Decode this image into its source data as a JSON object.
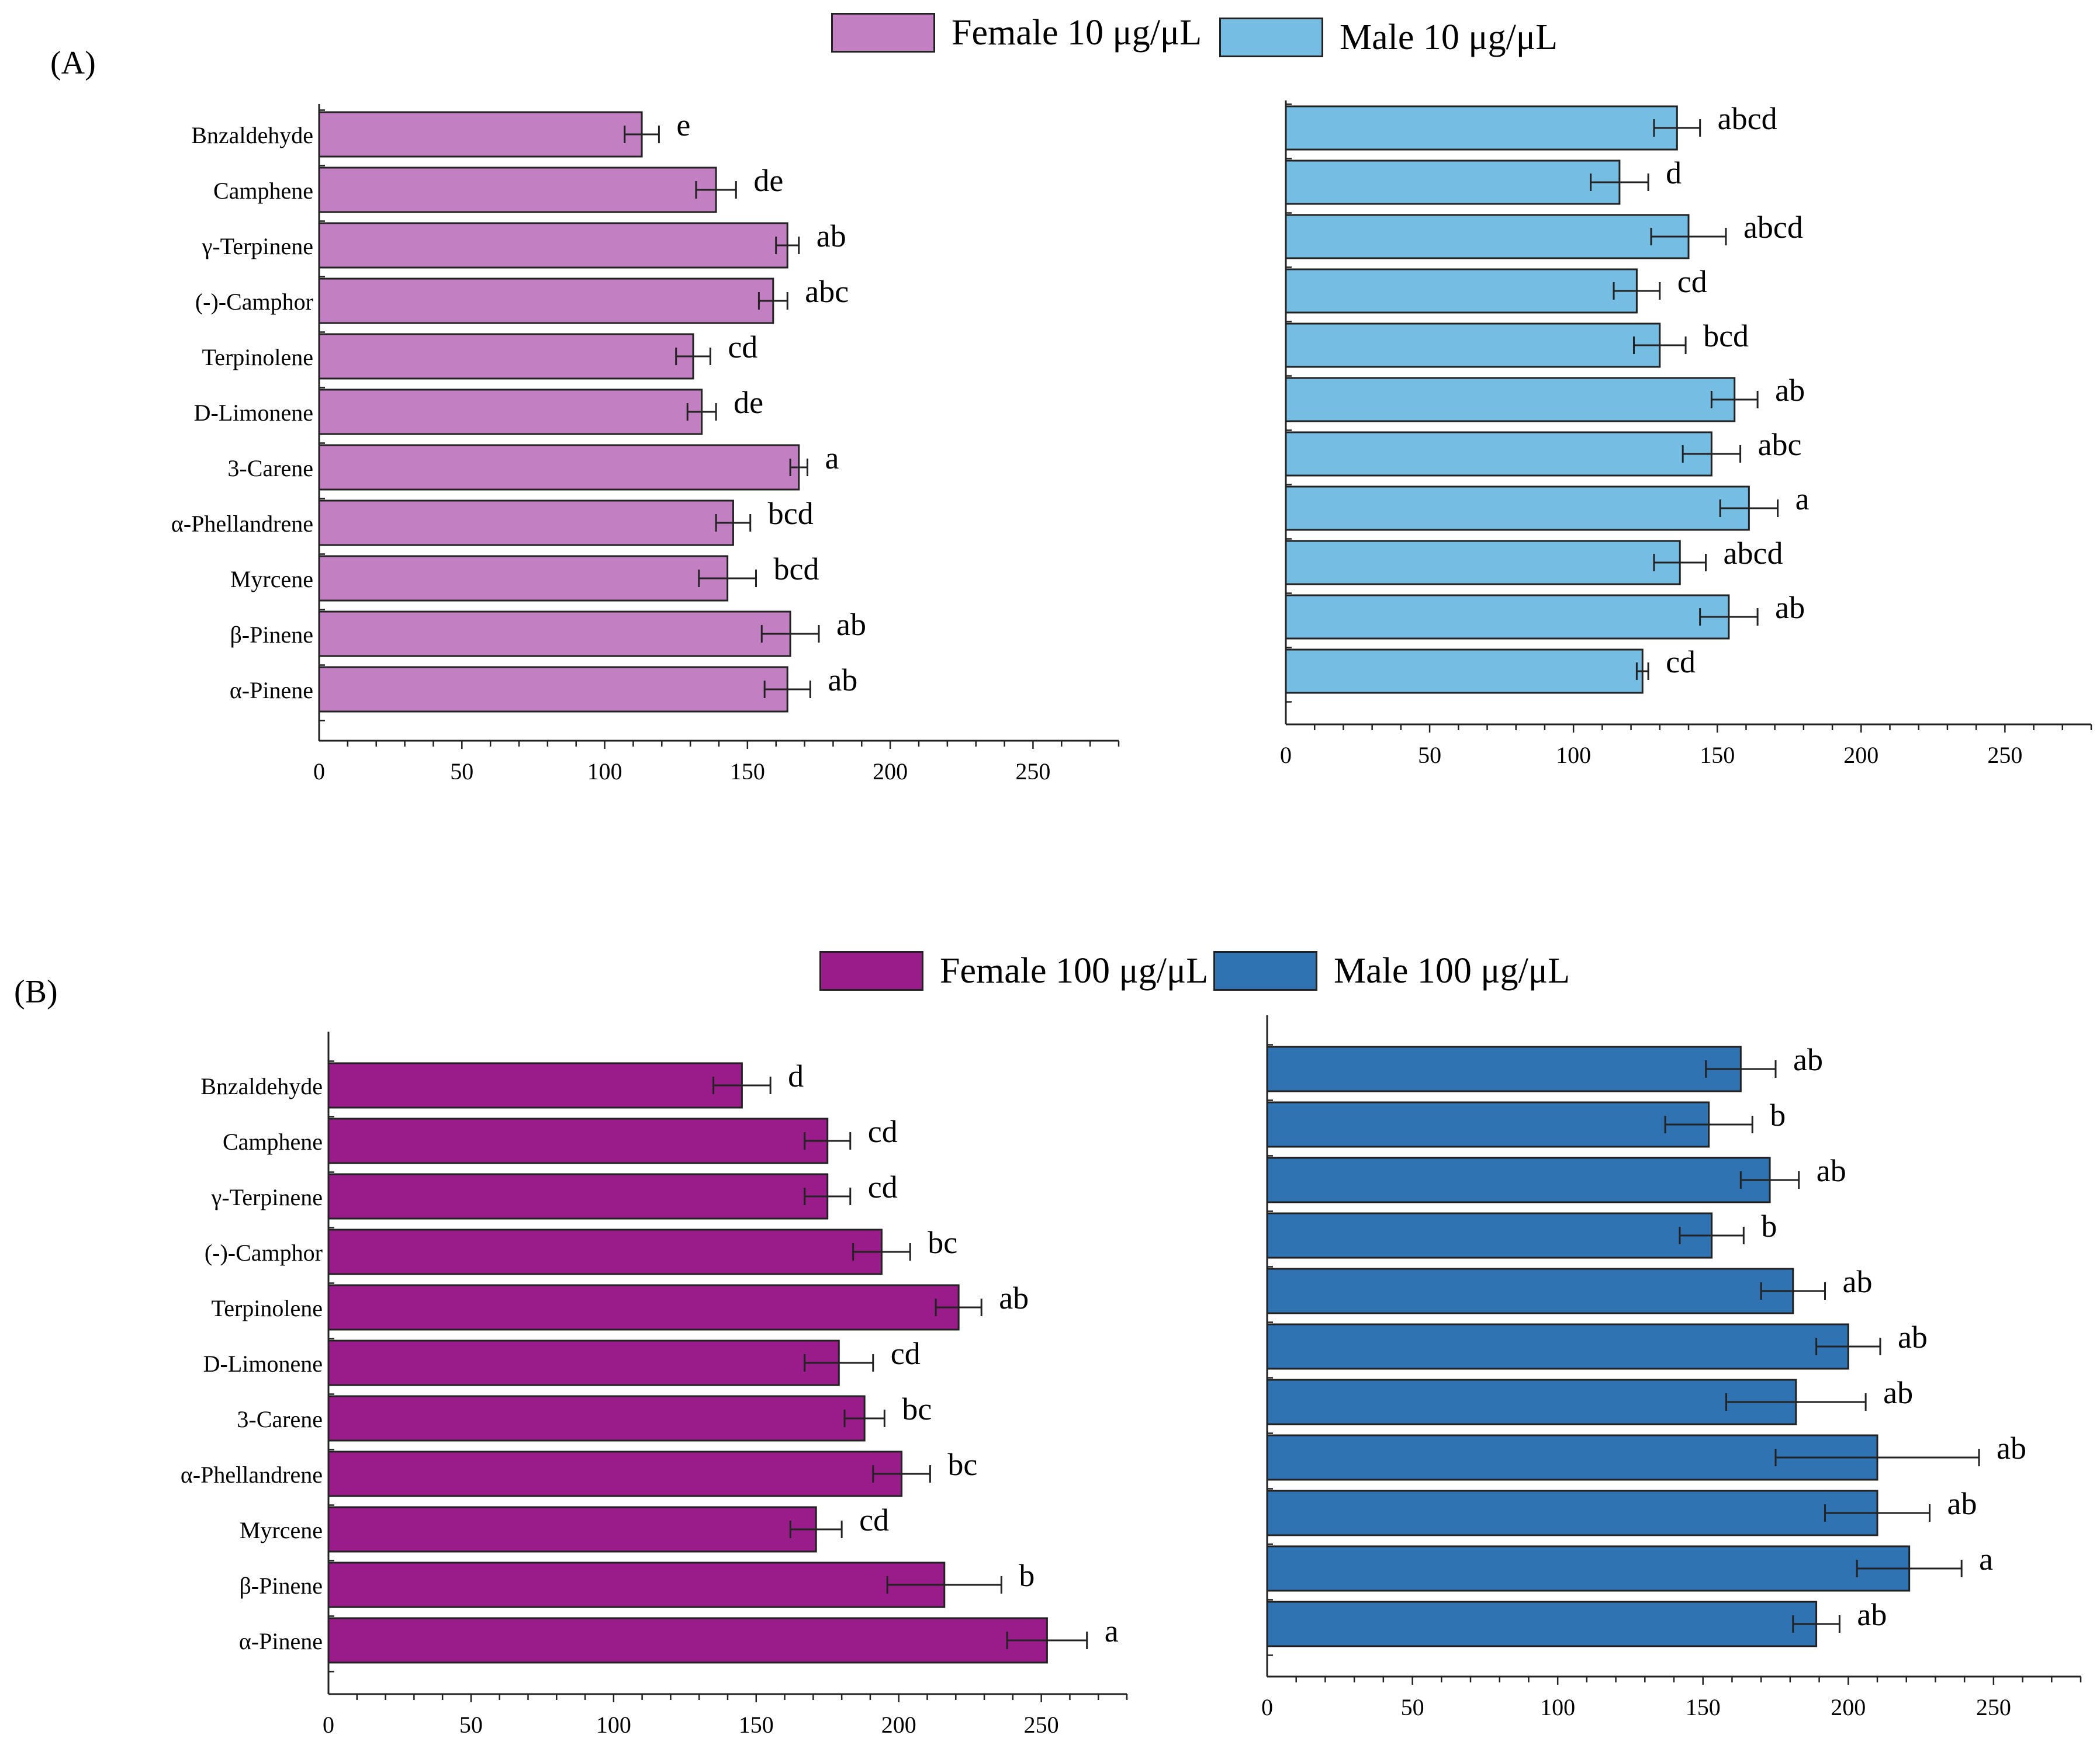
{
  "panels": {
    "A": {
      "label": "(A)",
      "legend": [
        {
          "label": "Female 10 μg/μL",
          "color": "#c27fc1"
        },
        {
          "label": "Male 10 μg/μL",
          "color": "#76bde3"
        }
      ]
    },
    "B": {
      "label": "(B)",
      "legend": [
        {
          "label": "Female 100 μg/μL",
          "color": "#9a1b8a"
        },
        {
          "label": "Male 100 μg/μL",
          "color": "#2f73b3"
        }
      ]
    }
  },
  "chart_data": [
    {
      "id": "A-female",
      "type": "bar",
      "orientation": "horizontal",
      "series_name": "Female 10 μg/μL",
      "color": "#c27fc1",
      "categories": [
        "Bnzaldehyde",
        "Camphene",
        "γ-Terpinene",
        "(-)-Camphor",
        "Terpinolene",
        "D-Limonene",
        "3-Carene",
        "α-Phellandrene",
        "Myrcene",
        "β-Pinene",
        "α-Pinene"
      ],
      "values": [
        113,
        139,
        164,
        159,
        131,
        134,
        168,
        145,
        143,
        165,
        164
      ],
      "errors": [
        6,
        7,
        4,
        5,
        6,
        5,
        3,
        6,
        10,
        10,
        8
      ],
      "annotations": [
        "e",
        "de",
        "ab",
        "abc",
        "cd",
        "de",
        "a",
        "bcd",
        "bcd",
        "ab",
        "ab"
      ],
      "xlim": [
        0,
        280
      ],
      "xticks": [
        0,
        50,
        100,
        150,
        200,
        250
      ]
    },
    {
      "id": "A-male",
      "type": "bar",
      "orientation": "horizontal",
      "series_name": "Male 10 μg/μL",
      "color": "#76bde3",
      "categories": [
        "Bnzaldehyde",
        "Camphene",
        "γ-Terpinene",
        "(-)-Camphor",
        "Terpinolene",
        "D-Limonene",
        "3-Carene",
        "α-Phellandrene",
        "Myrcene",
        "β-Pinene",
        "α-Pinene"
      ],
      "values": [
        136,
        116,
        140,
        122,
        130,
        156,
        148,
        161,
        137,
        154,
        124
      ],
      "errors": [
        8,
        10,
        13,
        8,
        9,
        8,
        10,
        10,
        9,
        10,
        2
      ],
      "annotations": [
        "abcd",
        "d",
        "abcd",
        "cd",
        "bcd",
        "ab",
        "abc",
        "a",
        "abcd",
        "ab",
        "cd"
      ],
      "xlim": [
        0,
        280
      ],
      "xticks": [
        0,
        50,
        100,
        150,
        200,
        250
      ]
    },
    {
      "id": "B-female",
      "type": "bar",
      "orientation": "horizontal",
      "series_name": "Female 100 μg/μL",
      "color": "#9a1b8a",
      "categories": [
        "Bnzaldehyde",
        "Camphene",
        "γ-Terpinene",
        "(-)-Camphor",
        "Terpinolene",
        "D-Limonene",
        "3-Carene",
        "α-Phellandrene",
        "Myrcene",
        "β-Pinene",
        "α-Pinene"
      ],
      "values": [
        145,
        175,
        175,
        194,
        221,
        179,
        188,
        201,
        171,
        216,
        252
      ],
      "errors": [
        10,
        8,
        8,
        10,
        8,
        12,
        7,
        10,
        9,
        20,
        14
      ],
      "annotations": [
        "d",
        "cd",
        "cd",
        "bc",
        "ab",
        "cd",
        "bc",
        "bc",
        "cd",
        "b",
        "a"
      ],
      "xlim": [
        0,
        280
      ],
      "xticks": [
        0,
        50,
        100,
        150,
        200,
        250
      ]
    },
    {
      "id": "B-male",
      "type": "bar",
      "orientation": "horizontal",
      "series_name": "Male 100 μg/μL",
      "color": "#2f73b3",
      "categories": [
        "Bnzaldehyde",
        "Camphene",
        "γ-Terpinene",
        "(-)-Camphor",
        "Terpinolene",
        "D-Limonene",
        "3-Carene",
        "α-Phellandrene",
        "Myrcene",
        "β-Pinene",
        "α-Pinene"
      ],
      "values": [
        163,
        152,
        173,
        153,
        181,
        200,
        182,
        210,
        210,
        221,
        189
      ],
      "errors": [
        12,
        15,
        10,
        11,
        11,
        11,
        24,
        35,
        18,
        18,
        8
      ],
      "annotations": [
        "ab",
        "b",
        "ab",
        "b",
        "ab",
        "ab",
        "ab",
        "ab",
        "ab",
        "a",
        "ab"
      ],
      "xlim": [
        0,
        280
      ],
      "xticks": [
        0,
        50,
        100,
        150,
        200,
        250
      ]
    }
  ]
}
